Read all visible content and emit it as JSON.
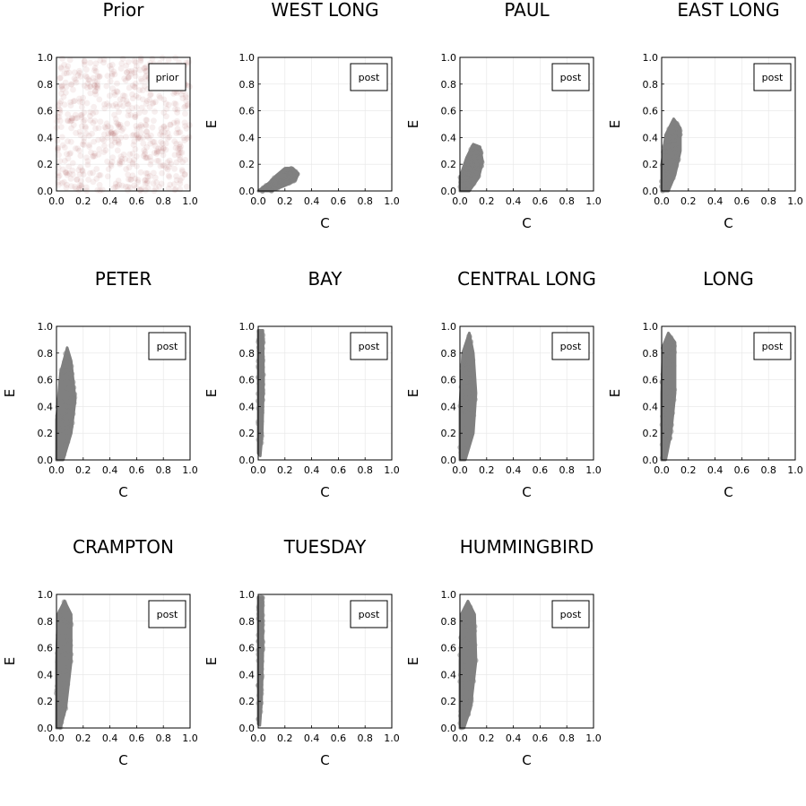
{
  "chart_data": [
    {
      "type": "scatter",
      "title": "Prior",
      "xlabel": "",
      "ylabel": "",
      "legend": "prior",
      "legend_position": "top-right",
      "xlim": [
        0,
        1
      ],
      "ylim": [
        0,
        1
      ],
      "color": "#8b1a1a",
      "xticks": [
        "0.0",
        "0.2",
        "0.4",
        "0.6",
        "0.8",
        "1.0"
      ],
      "yticks": [
        "0.0",
        "0.2",
        "0.4",
        "0.6",
        "0.8",
        "1.0"
      ],
      "distribution": "uniform",
      "c_range": [
        0,
        1
      ],
      "e_range": [
        0,
        1
      ]
    },
    {
      "type": "scatter",
      "title": "WEST LONG",
      "xlabel": "C",
      "ylabel": "E",
      "legend": "post",
      "legend_position": "top-right",
      "xlim": [
        0,
        1
      ],
      "ylim": [
        0,
        1
      ],
      "color": "#808080",
      "xticks": [
        "0.0",
        "0.2",
        "0.4",
        "0.6",
        "0.8",
        "1.0"
      ],
      "yticks": [
        "0.0",
        "0.2",
        "0.4",
        "0.6",
        "0.8",
        "1.0"
      ],
      "outline": [
        [
          0.0,
          0.0
        ],
        [
          0.08,
          0.06
        ],
        [
          0.14,
          0.12
        ],
        [
          0.2,
          0.17
        ],
        [
          0.26,
          0.17
        ],
        [
          0.3,
          0.13
        ],
        [
          0.28,
          0.08
        ],
        [
          0.2,
          0.04
        ],
        [
          0.1,
          0.0
        ]
      ]
    },
    {
      "type": "scatter",
      "title": "PAUL",
      "xlabel": "C",
      "ylabel": "E",
      "legend": "post",
      "legend_position": "top-right",
      "xlim": [
        0,
        1
      ],
      "ylim": [
        0,
        1
      ],
      "color": "#808080",
      "xticks": [
        "0.0",
        "0.2",
        "0.4",
        "0.6",
        "0.8",
        "1.0"
      ],
      "yticks": [
        "0.0",
        "0.2",
        "0.4",
        "0.6",
        "0.8",
        "1.0"
      ],
      "outline": [
        [
          0.0,
          0.0
        ],
        [
          0.0,
          0.1
        ],
        [
          0.05,
          0.25
        ],
        [
          0.1,
          0.35
        ],
        [
          0.15,
          0.33
        ],
        [
          0.17,
          0.22
        ],
        [
          0.14,
          0.1
        ],
        [
          0.07,
          0.0
        ]
      ]
    },
    {
      "type": "scatter",
      "title": "EAST LONG",
      "xlabel": "C",
      "ylabel": "E",
      "legend": "post",
      "legend_position": "top-right",
      "xlim": [
        0,
        1
      ],
      "ylim": [
        0,
        1
      ],
      "color": "#808080",
      "xticks": [
        "0.0",
        "0.2",
        "0.4",
        "0.6",
        "0.8",
        "1.0"
      ],
      "yticks": [
        "0.0",
        "0.2",
        "0.4",
        "0.6",
        "0.8",
        "1.0"
      ],
      "outline": [
        [
          0.0,
          0.0
        ],
        [
          0.0,
          0.2
        ],
        [
          0.03,
          0.42
        ],
        [
          0.09,
          0.54
        ],
        [
          0.14,
          0.47
        ],
        [
          0.14,
          0.3
        ],
        [
          0.1,
          0.12
        ],
        [
          0.05,
          0.0
        ]
      ]
    },
    {
      "type": "scatter",
      "title": "PETER",
      "xlabel": "C",
      "ylabel": "E",
      "legend": "post",
      "legend_position": "top-right",
      "xlim": [
        0,
        1
      ],
      "ylim": [
        0,
        1
      ],
      "color": "#808080",
      "xticks": [
        "0.0",
        "0.2",
        "0.4",
        "0.6",
        "0.8",
        "1.0"
      ],
      "yticks": [
        "0.0",
        "0.2",
        "0.4",
        "0.6",
        "0.8",
        "1.0"
      ],
      "outline": [
        [
          0.0,
          0.0
        ],
        [
          0.0,
          0.3
        ],
        [
          0.03,
          0.65
        ],
        [
          0.08,
          0.84
        ],
        [
          0.11,
          0.74
        ],
        [
          0.14,
          0.45
        ],
        [
          0.11,
          0.2
        ],
        [
          0.05,
          0.0
        ]
      ]
    },
    {
      "type": "scatter",
      "title": "BAY",
      "xlabel": "C",
      "ylabel": "E",
      "legend": "post",
      "legend_position": "top-right",
      "xlim": [
        0,
        1
      ],
      "ylim": [
        0,
        1
      ],
      "color": "#808080",
      "xticks": [
        "0.0",
        "0.2",
        "0.4",
        "0.6",
        "0.8",
        "1.0"
      ],
      "yticks": [
        "0.0",
        "0.2",
        "0.4",
        "0.6",
        "0.8",
        "1.0"
      ],
      "outline": [
        [
          0.0,
          0.05
        ],
        [
          0.0,
          0.97
        ],
        [
          0.035,
          0.97
        ],
        [
          0.04,
          0.6
        ],
        [
          0.03,
          0.2
        ],
        [
          0.015,
          0.03
        ]
      ]
    },
    {
      "type": "scatter",
      "title": "CENTRAL LONG",
      "xlabel": "C",
      "ylabel": "E",
      "legend": "post",
      "legend_position": "top-right",
      "xlim": [
        0,
        1
      ],
      "ylim": [
        0,
        1
      ],
      "color": "#808080",
      "xticks": [
        "0.0",
        "0.2",
        "0.4",
        "0.6",
        "0.8",
        "1.0"
      ],
      "yticks": [
        "0.0",
        "0.2",
        "0.4",
        "0.6",
        "0.8",
        "1.0"
      ],
      "outline": [
        [
          0.0,
          0.0
        ],
        [
          0.0,
          0.4
        ],
        [
          0.02,
          0.8
        ],
        [
          0.07,
          0.95
        ],
        [
          0.1,
          0.8
        ],
        [
          0.12,
          0.5
        ],
        [
          0.1,
          0.2
        ],
        [
          0.04,
          0.0
        ]
      ]
    },
    {
      "type": "scatter",
      "title": "LONG",
      "xlabel": "C",
      "ylabel": "E",
      "legend": "post",
      "legend_position": "top-right",
      "xlim": [
        0,
        1
      ],
      "ylim": [
        0,
        1
      ],
      "color": "#808080",
      "xticks": [
        "0.0",
        "0.2",
        "0.4",
        "0.6",
        "0.8",
        "1.0"
      ],
      "yticks": [
        "0.0",
        "0.2",
        "0.4",
        "0.6",
        "0.8",
        "1.0"
      ],
      "outline": [
        [
          0.0,
          0.0
        ],
        [
          0.0,
          0.5
        ],
        [
          0.01,
          0.85
        ],
        [
          0.05,
          0.95
        ],
        [
          0.1,
          0.88
        ],
        [
          0.1,
          0.5
        ],
        [
          0.07,
          0.2
        ],
        [
          0.03,
          0.0
        ]
      ]
    },
    {
      "type": "scatter",
      "title": "CRAMPTON",
      "xlabel": "C",
      "ylabel": "E",
      "legend": "post",
      "legend_position": "top-right",
      "xlim": [
        0,
        1
      ],
      "ylim": [
        0,
        1
      ],
      "color": "#808080",
      "xticks": [
        "0.0",
        "0.2",
        "0.4",
        "0.6",
        "0.8",
        "1.0"
      ],
      "yticks": [
        "0.0",
        "0.2",
        "0.4",
        "0.6",
        "0.8",
        "1.0"
      ],
      "outline": [
        [
          0.0,
          0.0
        ],
        [
          0.0,
          0.5
        ],
        [
          0.01,
          0.85
        ],
        [
          0.06,
          0.95
        ],
        [
          0.11,
          0.85
        ],
        [
          0.11,
          0.5
        ],
        [
          0.07,
          0.15
        ],
        [
          0.03,
          0.0
        ]
      ]
    },
    {
      "type": "scatter",
      "title": "TUESDAY",
      "xlabel": "C",
      "ylabel": "E",
      "legend": "post",
      "legend_position": "top-right",
      "xlim": [
        0,
        1
      ],
      "ylim": [
        0,
        1
      ],
      "color": "#808080",
      "xticks": [
        "0.0",
        "0.2",
        "0.4",
        "0.6",
        "0.8",
        "1.0"
      ],
      "yticks": [
        "0.0",
        "0.2",
        "0.4",
        "0.6",
        "0.8",
        "1.0"
      ],
      "outline": [
        [
          0.0,
          0.03
        ],
        [
          0.0,
          0.98
        ],
        [
          0.035,
          0.98
        ],
        [
          0.035,
          0.6
        ],
        [
          0.025,
          0.2
        ],
        [
          0.012,
          0.02
        ]
      ]
    },
    {
      "type": "scatter",
      "title": "HUMMINGBIRD",
      "xlabel": "C",
      "ylabel": "E",
      "legend": "post",
      "legend_position": "top-right",
      "xlim": [
        0,
        1
      ],
      "ylim": [
        0,
        1
      ],
      "color": "#808080",
      "xticks": [
        "0.0",
        "0.2",
        "0.4",
        "0.6",
        "0.8",
        "1.0"
      ],
      "yticks": [
        "0.0",
        "0.2",
        "0.4",
        "0.6",
        "0.8",
        "1.0"
      ],
      "outline": [
        [
          0.0,
          0.0
        ],
        [
          0.0,
          0.5
        ],
        [
          0.01,
          0.85
        ],
        [
          0.06,
          0.95
        ],
        [
          0.11,
          0.85
        ],
        [
          0.12,
          0.5
        ],
        [
          0.08,
          0.15
        ],
        [
          0.03,
          0.0
        ]
      ]
    }
  ]
}
